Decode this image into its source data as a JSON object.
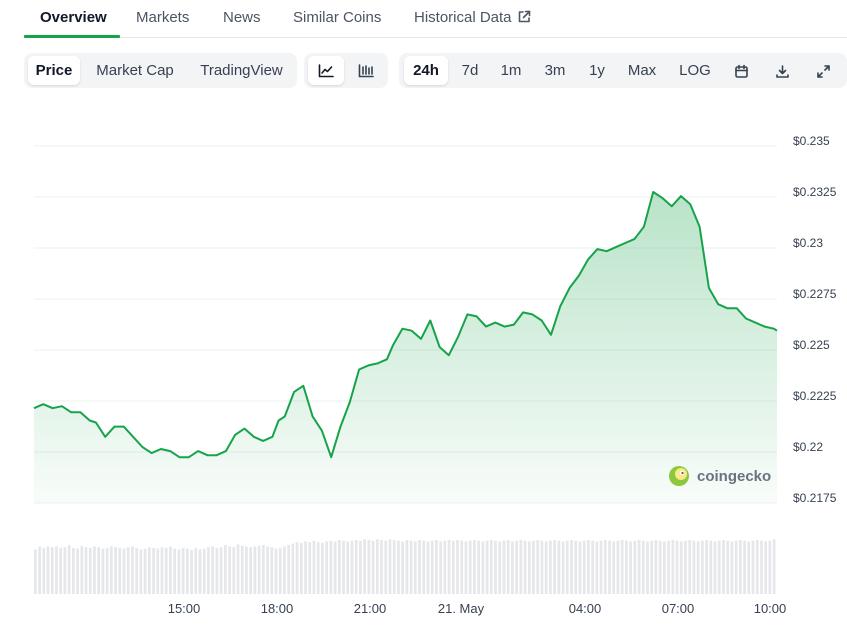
{
  "tabs": [
    {
      "label": "Overview",
      "active": true
    },
    {
      "label": "Markets"
    },
    {
      "label": "News"
    },
    {
      "label": "Similar Coins"
    },
    {
      "label": "Historical Data",
      "icon": "external-link-icon"
    }
  ],
  "toolbar": {
    "chart_kind": [
      "Price",
      "Market Cap",
      "TradingView"
    ],
    "chart_style_icons": [
      "line-chart-icon",
      "candlestick-icon"
    ],
    "ranges": [
      "24h",
      "7d",
      "1m",
      "3m",
      "1y",
      "Max",
      "LOG"
    ],
    "action_icons": [
      "calendar-icon",
      "download-icon",
      "fullscreen-icon"
    ]
  },
  "watermark": {
    "text": "coingecko",
    "icon": "coingecko-logo-icon"
  },
  "colors": {
    "line": "#16a34a",
    "fill_top": "#16a34a",
    "volume": "#e5e7eb",
    "active_tab": "#16a34a"
  },
  "chart_data": {
    "type": "area",
    "x_ticks": [
      "15:00",
      "18:00",
      "21:00",
      "21. May",
      "04:00",
      "07:00",
      "10:00"
    ],
    "y_ticks": [
      "$0.235",
      "$0.2325",
      "$0.23",
      "$0.2275",
      "$0.225",
      "$0.2225",
      "$0.22",
      "$0.2175"
    ],
    "ylim": [
      0.2175,
      0.235
    ],
    "xlim_hours": [
      0,
      24
    ],
    "series": [
      {
        "x": [
          0,
          0.3,
          0.6,
          0.9,
          1.2,
          1.5,
          1.8,
          2.0,
          2.3,
          2.6,
          2.9,
          3.2,
          3.5,
          3.8,
          4.1,
          4.4,
          4.7,
          5.0,
          5.3,
          5.6,
          5.9,
          6.2,
          6.5,
          6.8,
          7.1,
          7.4,
          7.7,
          7.9,
          8.1,
          8.4,
          8.7,
          9.0,
          9.3,
          9.6,
          9.9,
          10.2,
          10.5,
          10.8,
          11.1,
          11.4,
          11.6,
          11.9,
          12.2,
          12.5,
          12.8,
          13.1,
          13.4,
          13.7,
          14.0,
          14.3,
          14.6,
          14.9,
          15.2,
          15.5,
          15.8,
          16.1,
          16.4,
          16.7,
          17.0,
          17.3,
          17.6,
          17.9,
          18.2,
          18.5,
          18.8,
          19.1,
          19.4,
          19.7,
          20.0,
          20.3,
          20.6,
          20.9,
          21.2,
          21.5,
          21.8,
          22.1,
          22.4,
          22.7,
          23.0,
          23.3,
          23.6,
          23.9,
          24.0
        ],
        "y": [
          0.2219,
          0.2221,
          0.2219,
          0.222,
          0.2217,
          0.2217,
          0.2213,
          0.2212,
          0.2205,
          0.221,
          0.221,
          0.2205,
          0.22,
          0.2197,
          0.2199,
          0.2198,
          0.2195,
          0.2195,
          0.2198,
          0.2196,
          0.2196,
          0.2198,
          0.2206,
          0.2209,
          0.2205,
          0.2203,
          0.2205,
          0.2213,
          0.2215,
          0.2227,
          0.223,
          0.2215,
          0.2208,
          0.2195,
          0.221,
          0.2222,
          0.2238,
          0.224,
          0.2241,
          0.2243,
          0.225,
          0.2258,
          0.2257,
          0.2253,
          0.2262,
          0.2249,
          0.2245,
          0.2254,
          0.2265,
          0.2264,
          0.2259,
          0.2261,
          0.2259,
          0.226,
          0.2266,
          0.2265,
          0.2262,
          0.2255,
          0.2269,
          0.2278,
          0.2284,
          0.2292,
          0.2297,
          0.2296,
          0.2298,
          0.23,
          0.2302,
          0.2308,
          0.2325,
          0.2322,
          0.2318,
          0.2323,
          0.2319,
          0.2308,
          0.2278,
          0.227,
          0.2268,
          0.2268,
          0.2263,
          0.2261,
          0.2259,
          0.2258,
          0.2257
        ]
      }
    ],
    "volume": [
      0.62,
      0.66,
      0.64,
      0.66,
      0.65,
      0.66,
      0.64,
      0.65,
      0.68,
      0.64,
      0.63,
      0.67,
      0.65,
      0.64,
      0.66,
      0.65,
      0.63,
      0.64,
      0.66,
      0.65,
      0.64,
      0.63,
      0.65,
      0.66,
      0.64,
      0.62,
      0.63,
      0.65,
      0.64,
      0.63,
      0.65,
      0.64,
      0.66,
      0.63,
      0.62,
      0.64,
      0.63,
      0.61,
      0.64,
      0.62,
      0.63,
      0.65,
      0.66,
      0.64,
      0.65,
      0.68,
      0.66,
      0.65,
      0.69,
      0.67,
      0.66,
      0.65,
      0.66,
      0.67,
      0.68,
      0.66,
      0.65,
      0.63,
      0.64,
      0.66,
      0.68,
      0.7,
      0.72,
      0.71,
      0.73,
      0.72,
      0.74,
      0.72,
      0.71,
      0.73,
      0.74,
      0.73,
      0.75,
      0.74,
      0.73,
      0.74,
      0.75,
      0.74,
      0.76,
      0.75,
      0.74,
      0.76,
      0.75,
      0.74,
      0.76,
      0.75,
      0.74,
      0.73,
      0.75,
      0.74,
      0.73,
      0.75,
      0.74,
      0.73,
      0.74,
      0.75,
      0.73,
      0.74,
      0.75,
      0.74,
      0.75,
      0.74,
      0.73,
      0.74,
      0.75,
      0.74,
      0.73,
      0.74,
      0.75,
      0.74,
      0.73,
      0.74,
      0.75,
      0.73,
      0.74,
      0.75,
      0.74,
      0.73,
      0.74,
      0.75,
      0.74,
      0.73,
      0.74,
      0.75,
      0.74,
      0.73,
      0.74,
      0.75,
      0.74,
      0.73,
      0.74,
      0.75,
      0.74,
      0.73,
      0.74,
      0.75,
      0.74,
      0.73,
      0.74,
      0.75,
      0.74,
      0.73,
      0.74,
      0.75,
      0.74,
      0.73,
      0.74,
      0.75,
      0.74,
      0.73,
      0.74,
      0.75,
      0.74,
      0.73,
      0.74,
      0.75,
      0.74,
      0.73,
      0.74,
      0.75,
      0.74,
      0.73,
      0.74,
      0.75,
      0.74,
      0.73,
      0.74,
      0.75,
      0.74,
      0.73,
      0.74,
      0.75,
      0.74,
      0.73,
      0.74,
      0.76
    ]
  }
}
